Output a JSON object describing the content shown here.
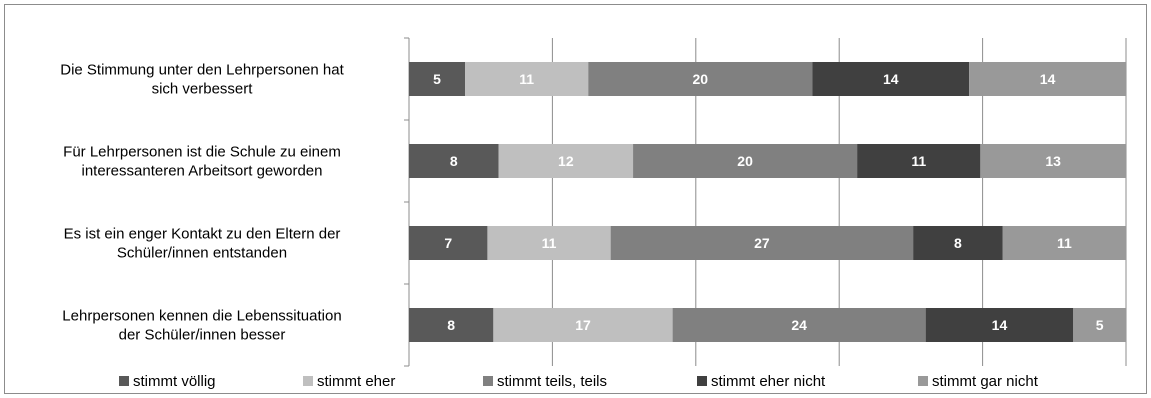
{
  "chart_data": {
    "type": "bar",
    "orientation": "horizontal",
    "stacked": "percent",
    "title": "",
    "xlabel": "",
    "ylabel": "",
    "categories": [
      [
        "Die Stimmung unter den Lehrpersonen hat",
        "sich verbessert"
      ],
      [
        "Für Lehrpersonen ist die Schule zu einem",
        "interessanteren Arbeitsort geworden"
      ],
      [
        "Es ist ein enger Kontakt zu den Eltern der",
        "Schüler/innen entstanden"
      ],
      [
        "Lehrpersonen kennen die Lebenssituation",
        "der Schüler/innen besser"
      ]
    ],
    "series": [
      {
        "name": "stimmt völlig",
        "color": "#595959",
        "label_color": "#ffffff",
        "values": [
          5,
          8,
          7,
          8
        ]
      },
      {
        "name": "stimmt eher",
        "color": "#bfbfbf",
        "label_color": "#ffffff",
        "values": [
          11,
          12,
          11,
          17
        ]
      },
      {
        "name": "stimmt teils, teils",
        "color": "#808080",
        "label_color": "#ffffff",
        "values": [
          20,
          20,
          27,
          24
        ]
      },
      {
        "name": "stimmt eher nicht",
        "color": "#404040",
        "label_color": "#ffffff",
        "values": [
          14,
          11,
          8,
          14
        ]
      },
      {
        "name": "stimmt gar nicht",
        "color": "#999999",
        "label_color": "#ffffff",
        "values": [
          14,
          13,
          11,
          5
        ]
      }
    ],
    "first_label_exceptions": {
      "0": "#ffffff"
    },
    "grid": true,
    "legend_position": "bottom"
  }
}
